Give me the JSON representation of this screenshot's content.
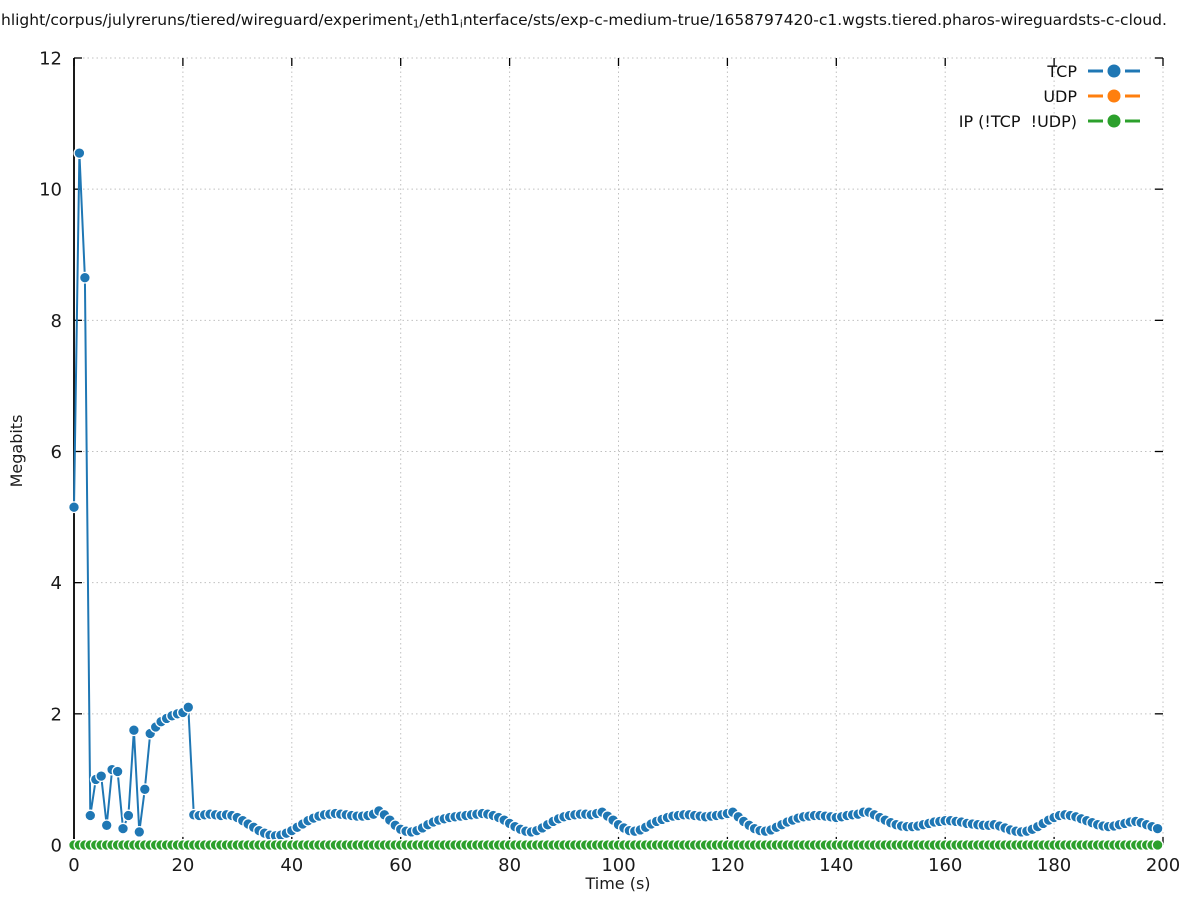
{
  "title": {
    "part1": "hlight/corpus/julyreruns/tiered/wireguard/experiment",
    "sub1": "1",
    "part2": "/eth1",
    "sub2": "i",
    "part3": "nterface/sts/exp-c-medium-true/1658797420-c1.wgsts.tiered.pharos-wireguardsts-c-cloud."
  },
  "axes": {
    "xlabel": "Time (s)",
    "ylabel": "Megabits"
  },
  "legend": {
    "items": [
      {
        "label": "TCP",
        "color": "#1f77b4"
      },
      {
        "label": "UDP",
        "color": "#ff7f0e"
      },
      {
        "label": "IP (!TCP  !UDP)",
        "color": "#2ca02c"
      }
    ]
  },
  "chart_data": {
    "type": "line",
    "title": "hlight/corpus/julyreruns/tiered/wireguard/experiment_1/eth1_interface/sts/exp-c-medium-true/1658797420-c1.wgsts.tiered.pharos-wireguardsts-c-cloud.",
    "xlabel": "Time (s)",
    "ylabel": "Megabits",
    "xlim": [
      0,
      200
    ],
    "ylim": [
      0,
      12
    ],
    "xticks": [
      0,
      20,
      40,
      60,
      80,
      100,
      120,
      140,
      160,
      180,
      200
    ],
    "yticks": [
      0,
      2,
      4,
      6,
      8,
      10,
      12
    ],
    "grid": true,
    "legend_position": "top-right-inside",
    "x_step": 1,
    "series": [
      {
        "name": "TCP",
        "color": "#1f77b4",
        "marker": "circle",
        "x_start": 0,
        "values": [
          5.15,
          10.55,
          8.65,
          0.45,
          1.0,
          1.05,
          0.3,
          1.15,
          1.12,
          0.25,
          0.45,
          1.75,
          0.2,
          0.85,
          1.7,
          1.8,
          1.88,
          1.93,
          1.97,
          2.0,
          2.02,
          2.1,
          0.46,
          0.45,
          0.46,
          0.47,
          0.46,
          0.45,
          0.46,
          0.45,
          0.42,
          0.37,
          0.32,
          0.27,
          0.22,
          0.18,
          0.15,
          0.14,
          0.15,
          0.18,
          0.22,
          0.27,
          0.32,
          0.37,
          0.41,
          0.44,
          0.46,
          0.47,
          0.48,
          0.47,
          0.46,
          0.45,
          0.44,
          0.44,
          0.45,
          0.47,
          0.52,
          0.46,
          0.38,
          0.3,
          0.24,
          0.21,
          0.2,
          0.22,
          0.26,
          0.31,
          0.35,
          0.38,
          0.4,
          0.42,
          0.43,
          0.44,
          0.45,
          0.46,
          0.47,
          0.48,
          0.47,
          0.45,
          0.42,
          0.38,
          0.33,
          0.28,
          0.24,
          0.21,
          0.2,
          0.22,
          0.26,
          0.31,
          0.36,
          0.4,
          0.43,
          0.45,
          0.46,
          0.47,
          0.47,
          0.46,
          0.48,
          0.5,
          0.44,
          0.38,
          0.31,
          0.26,
          0.22,
          0.21,
          0.23,
          0.27,
          0.32,
          0.36,
          0.39,
          0.42,
          0.44,
          0.45,
          0.46,
          0.46,
          0.45,
          0.44,
          0.43,
          0.44,
          0.45,
          0.46,
          0.48,
          0.5,
          0.43,
          0.36,
          0.3,
          0.25,
          0.22,
          0.21,
          0.23,
          0.27,
          0.31,
          0.35,
          0.38,
          0.41,
          0.43,
          0.44,
          0.45,
          0.45,
          0.44,
          0.43,
          0.42,
          0.43,
          0.45,
          0.46,
          0.47,
          0.5,
          0.5,
          0.46,
          0.42,
          0.38,
          0.34,
          0.31,
          0.29,
          0.28,
          0.28,
          0.29,
          0.31,
          0.33,
          0.35,
          0.36,
          0.37,
          0.37,
          0.36,
          0.35,
          0.33,
          0.32,
          0.31,
          0.3,
          0.3,
          0.31,
          0.29,
          0.26,
          0.23,
          0.21,
          0.2,
          0.21,
          0.24,
          0.28,
          0.33,
          0.38,
          0.42,
          0.45,
          0.46,
          0.45,
          0.43,
          0.4,
          0.37,
          0.34,
          0.31,
          0.29,
          0.28,
          0.29,
          0.31,
          0.33,
          0.35,
          0.36,
          0.34,
          0.31,
          0.28,
          0.25
        ]
      },
      {
        "name": "UDP",
        "color": "#ff7f0e",
        "marker": "circle",
        "x_start": 0,
        "constant_value": 0,
        "count": 200
      },
      {
        "name": "IP (!TCP  !UDP)",
        "color": "#2ca02c",
        "marker": "circle",
        "x_start": 0,
        "constant_value": 0,
        "count": 200
      }
    ]
  }
}
